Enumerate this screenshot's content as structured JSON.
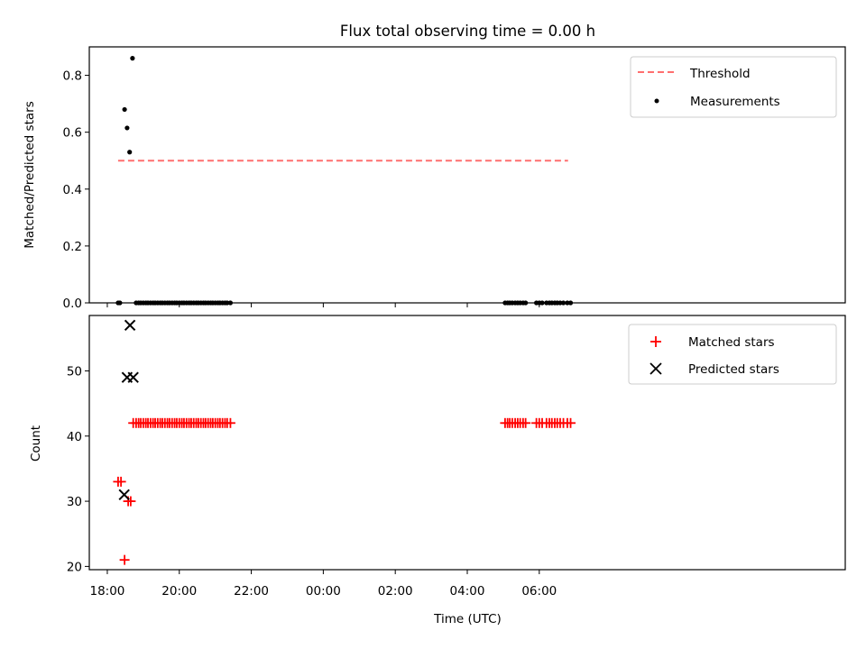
{
  "chart_data": [
    {
      "type": "scatter",
      "title": "Flux total observing time = 0.00 h",
      "xlabel": "",
      "ylabel": "Matched/Predicted stars",
      "xlim_hours": [
        17.5,
        38.5
      ],
      "ylim": [
        0,
        0.9
      ],
      "yticks": [
        0.0,
        0.2,
        0.4,
        0.6,
        0.8
      ],
      "ytick_labels": [
        "0.0",
        "0.2",
        "0.4",
        "0.6",
        "0.8"
      ],
      "legend": "top-right",
      "series": [
        {
          "name": "Threshold",
          "kind": "line",
          "style": "dashed",
          "color": "#ff6f6f",
          "x": [
            18.3,
            30.8
          ],
          "y": [
            0.5,
            0.5
          ]
        },
        {
          "name": "Measurements",
          "kind": "scatter",
          "color": "#000000",
          "x": [
            18.3,
            18.35,
            18.48,
            18.55,
            18.62,
            18.7,
            18.8,
            18.87,
            18.93,
            19.0,
            19.07,
            19.13,
            19.2,
            19.27,
            19.33,
            19.4,
            19.47,
            19.53,
            19.6,
            19.67,
            19.73,
            19.8,
            19.87,
            19.93,
            20.0,
            20.07,
            20.13,
            20.2,
            20.27,
            20.33,
            20.4,
            20.47,
            20.53,
            20.6,
            20.67,
            20.73,
            20.8,
            20.87,
            20.93,
            21.0,
            21.07,
            21.13,
            21.2,
            21.27,
            21.33,
            21.42,
            29.05,
            29.12,
            29.18,
            29.25,
            29.33,
            29.4,
            29.47,
            29.55,
            29.62,
            29.92,
            30.0,
            30.08,
            30.2,
            30.28,
            30.35,
            30.43,
            30.5,
            30.58,
            30.67,
            30.78,
            30.87
          ],
          "y": [
            0,
            0,
            0.68,
            0.615,
            0.53,
            0.86,
            0,
            0,
            0,
            0,
            0,
            0,
            0,
            0,
            0,
            0,
            0,
            0,
            0,
            0,
            0,
            0,
            0,
            0,
            0,
            0,
            0,
            0,
            0,
            0,
            0,
            0,
            0,
            0,
            0,
            0,
            0,
            0,
            0,
            0,
            0,
            0,
            0,
            0,
            0,
            0,
            0,
            0,
            0,
            0,
            0,
            0,
            0,
            0,
            0,
            0,
            0,
            0,
            0,
            0,
            0,
            0,
            0,
            0,
            0,
            0,
            0
          ]
        }
      ]
    },
    {
      "type": "scatter",
      "title": "",
      "xlabel": "Time (UTC)",
      "ylabel": "Count",
      "xlim_hours": [
        17.5,
        38.5
      ],
      "ylim": [
        19.5,
        58.5
      ],
      "xticks_hours": [
        18,
        20,
        22,
        24,
        26,
        28,
        30
      ],
      "xtick_labels": [
        "18:00",
        "20:00",
        "22:00",
        "00:00",
        "02:00",
        "04:00",
        "06:00"
      ],
      "yticks": [
        20,
        30,
        40,
        50
      ],
      "ytick_labels": [
        "20",
        "30",
        "40",
        "50"
      ],
      "legend": "top-right",
      "series": [
        {
          "name": "Matched stars",
          "kind": "scatter",
          "marker": "+",
          "color": "#ff0000",
          "x": [
            18.3,
            18.38,
            18.48,
            18.58,
            18.65,
            18.72,
            18.8,
            18.87,
            18.93,
            19.0,
            19.07,
            19.13,
            19.2,
            19.27,
            19.33,
            19.4,
            19.47,
            19.53,
            19.6,
            19.67,
            19.73,
            19.8,
            19.87,
            19.93,
            20.0,
            20.07,
            20.13,
            20.2,
            20.27,
            20.33,
            20.4,
            20.47,
            20.53,
            20.6,
            20.67,
            20.73,
            20.8,
            20.87,
            20.93,
            21.0,
            21.07,
            21.13,
            21.2,
            21.27,
            21.33,
            21.42,
            29.05,
            29.12,
            29.18,
            29.25,
            29.33,
            29.4,
            29.47,
            29.55,
            29.62,
            29.92,
            30.0,
            30.08,
            30.2,
            30.28,
            30.35,
            30.43,
            30.5,
            30.58,
            30.67,
            30.78,
            30.87
          ],
          "y": [
            33,
            33,
            21,
            30,
            30,
            42,
            42,
            42,
            42,
            42,
            42,
            42,
            42,
            42,
            42,
            42,
            42,
            42,
            42,
            42,
            42,
            42,
            42,
            42,
            42,
            42,
            42,
            42,
            42,
            42,
            42,
            42,
            42,
            42,
            42,
            42,
            42,
            42,
            42,
            42,
            42,
            42,
            42,
            42,
            42,
            42,
            42,
            42,
            42,
            42,
            42,
            42,
            42,
            42,
            42,
            42,
            42,
            42,
            42,
            42,
            42,
            42,
            42,
            42,
            42,
            42,
            42
          ]
        },
        {
          "name": "Predicted stars",
          "kind": "scatter",
          "marker": "x",
          "color": "#000000",
          "x": [
            18.47,
            18.55,
            18.63,
            18.72
          ],
          "y": [
            31,
            49,
            57,
            49
          ]
        }
      ]
    }
  ]
}
